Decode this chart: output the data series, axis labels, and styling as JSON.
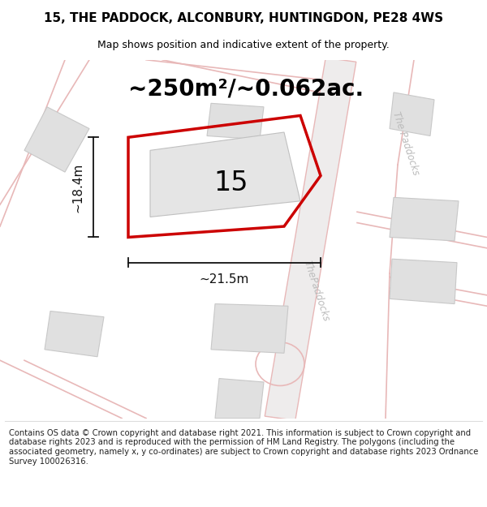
{
  "title": "15, THE PADDOCK, ALCONBURY, HUNTINGDON, PE28 4WS",
  "subtitle": "Map shows position and indicative extent of the property.",
  "area_label": "~250m²/~0.062ac.",
  "height_label": "~18.4m",
  "width_label": "~21.5m",
  "plot_number": "15",
  "copyright_text": "Contains OS data © Crown copyright and database right 2021. This information is subject to Crown copyright and database rights 2023 and is reproduced with the permission of HM Land Registry. The polygons (including the associated geometry, namely x, y co-ordinates) are subject to Crown copyright and database rights 2023 Ordnance Survey 100026316.",
  "map_bg": "#f7f5f5",
  "plot_outline": "#cc0000",
  "road_fill": "#f0eded",
  "road_line_color": "#e8b8b8",
  "road_label_color": "#bbbbbb",
  "building_fill": "#e0e0e0",
  "building_edge": "#c8c8c8",
  "dim_color": "#111111",
  "title_fontsize": 11,
  "subtitle_fontsize": 9,
  "area_fontsize": 20,
  "dim_fontsize": 11,
  "plot_num_fontsize": 24,
  "copyright_fontsize": 7.2
}
